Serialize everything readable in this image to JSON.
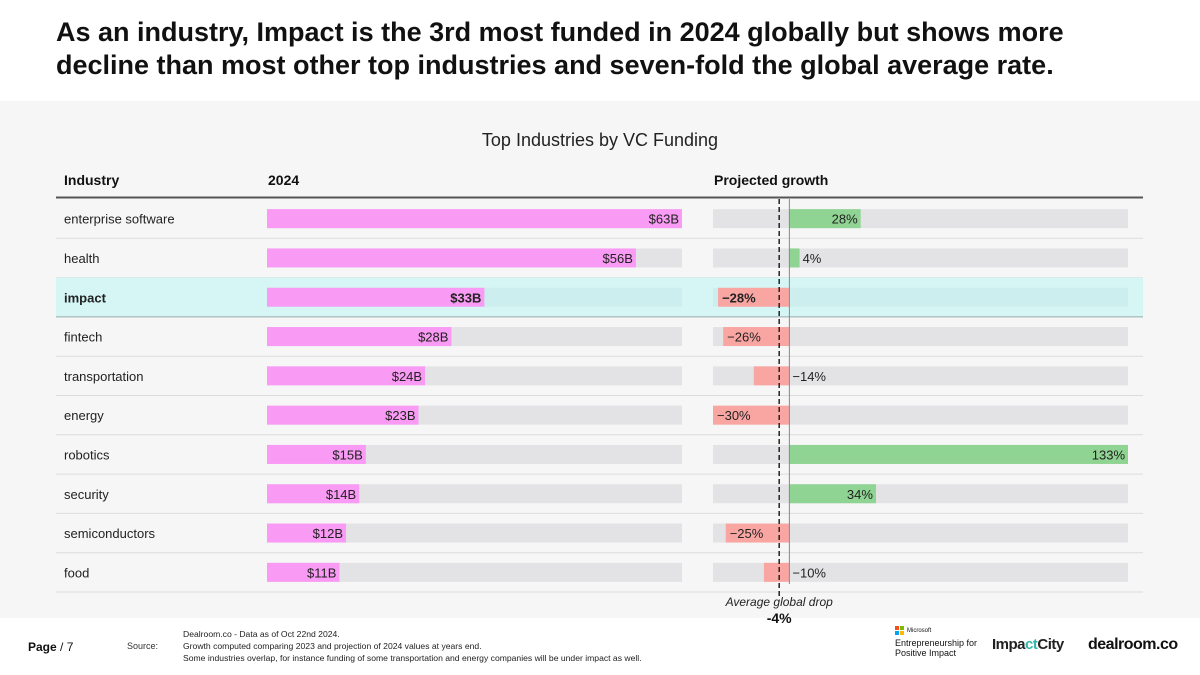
{
  "headline": "As an industry, Impact is the 3rd most funded in 2024 globally but shows more decline than most other top industries and seven-fold the global average rate.",
  "chart_data": {
    "type": "bar",
    "title": "Top Industries by VC Funding",
    "columns": {
      "industry": "Industry",
      "funding": "2024",
      "growth": "Projected growth"
    },
    "categories": [
      "enterprise software",
      "health",
      "impact",
      "fintech",
      "transportation",
      "energy",
      "robotics",
      "security",
      "semiconductors",
      "food"
    ],
    "series": [
      {
        "key": "funding",
        "unit": "B USD",
        "values": [
          63,
          56,
          33,
          28,
          24,
          23,
          15,
          14,
          12,
          11
        ],
        "labels": [
          "$63B",
          "$56B",
          "$33B",
          "$28B",
          "$24B",
          "$23B",
          "$15B",
          "$14B",
          "$12B",
          "$11B"
        ]
      },
      {
        "key": "growth",
        "unit": "%",
        "values": [
          28,
          4,
          -28,
          -26,
          -14,
          -30,
          133,
          34,
          -25,
          -10
        ],
        "labels": [
          "28%",
          "4%",
          "−28%",
          "−26%",
          "−14%",
          "−30%",
          "133%",
          "34%",
          "−25%",
          "−10%"
        ]
      }
    ],
    "highlight": "impact",
    "funding_max": 63,
    "growth_range": [
      -30,
      133
    ],
    "reference_line": {
      "value": -4,
      "label": "Average global drop",
      "value_label": "-4%"
    },
    "colors": {
      "funding": "#f99af4",
      "track": "#e3e3e6",
      "positive": "#8fd492",
      "negative": "#f9a6a3",
      "highlight_row": "#d6f6f6"
    }
  },
  "footer": {
    "page": "Page",
    "page_number": "/ 7",
    "source_label": "Source:",
    "source_lines": [
      "Dealroom.co - Data as of Oct 22nd 2024.",
      "Growth computed comparing 2023 and projection of 2024 values at years end.",
      "Some industries overlap, for instance funding of some transportation and energy companies will be under impact as well."
    ],
    "logos": {
      "microsoft": "Microsoft",
      "microsoft_program": "Entrepreneurship for Positive Impact",
      "impactcity": "ImpactCity",
      "dealroom": "dealroom.co"
    }
  }
}
